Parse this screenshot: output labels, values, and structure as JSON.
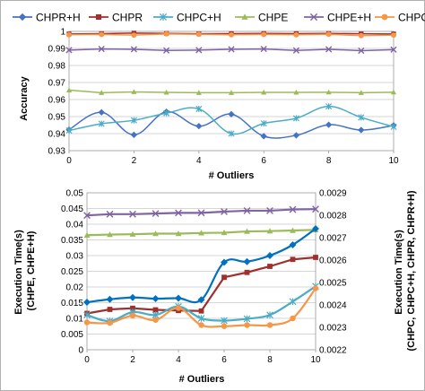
{
  "chart_data": [
    {
      "type": "line",
      "xlabel": "# Outliers",
      "ylabel": "Accuracy",
      "x": [
        0,
        1,
        2,
        3,
        4,
        5,
        6,
        7,
        8,
        9,
        10
      ],
      "xlim": [
        0,
        10
      ],
      "ylim": [
        0.93,
        1.0
      ],
      "xticks": [
        "0",
        "2",
        "4",
        "6",
        "8",
        "10"
      ],
      "yticks": [
        "0.93",
        "0.94",
        "0.95",
        "0.96",
        "0.97",
        "0.98",
        "0.99",
        "1"
      ],
      "grid": "horizontal",
      "legend_position": "top",
      "series": [
        {
          "name": "CHPR+H",
          "color": "#4472C4",
          "marker": "diamond",
          "smooth": true,
          "values": [
            0.9423,
            0.9525,
            0.9393,
            0.9528,
            0.9444,
            0.9514,
            0.9385,
            0.939,
            0.9452,
            0.9421,
            0.9448
          ]
        },
        {
          "name": "CHPR",
          "color": "#A0302D",
          "marker": "square",
          "values": [
            0.9985,
            0.9987,
            0.999,
            0.9988,
            0.9986,
            0.9987,
            0.9988,
            0.9987,
            0.9988,
            0.9986,
            0.9985
          ]
        },
        {
          "name": "CHPC+H",
          "color": "#4BACC6",
          "marker": "star",
          "smooth": true,
          "values": [
            0.9418,
            0.9458,
            0.9478,
            0.952,
            0.9545,
            0.94,
            0.946,
            0.949,
            0.956,
            0.9495,
            0.944
          ]
        },
        {
          "name": "CHPE",
          "color": "#9BBB59",
          "marker": "triangle",
          "values": [
            0.9655,
            0.964,
            0.9645,
            0.9642,
            0.964,
            0.964,
            0.9642,
            0.9642,
            0.9643,
            0.964,
            0.9643
          ]
        },
        {
          "name": "CHPE+H",
          "color": "#8064A2",
          "marker": "x",
          "values": [
            0.989,
            0.9897,
            0.9895,
            0.9888,
            0.989,
            0.9895,
            0.9897,
            0.9888,
            0.9895,
            0.9887,
            0.9893
          ]
        },
        {
          "name": "CHPC",
          "color": "#F79646",
          "marker": "circle",
          "values": [
            0.998,
            0.9982,
            0.9978,
            0.9985,
            0.9983,
            0.998,
            0.9982,
            0.998,
            0.9983,
            0.9975,
            0.9978
          ]
        }
      ]
    },
    {
      "type": "line",
      "xlabel": "# Outliers",
      "ylabel": "Execution Time(s) (CHPE, CHPE+H)",
      "ylabel_lines": [
        "Execution Time(s)",
        "(CHPE, CHPE+H)"
      ],
      "y2label": "Execution Time(s) (CHPC, CHPC+H, CHPR, CHPR+H)",
      "y2label_lines": [
        "Execution Time(s)",
        "(CHPC, CHPC+H, CHPR, CHPR+H)"
      ],
      "x": [
        0,
        1,
        2,
        3,
        4,
        5,
        6,
        7,
        8,
        9,
        10
      ],
      "xlim": [
        0,
        10
      ],
      "ylim": [
        0,
        0.05
      ],
      "y2lim": [
        0.0022,
        0.0029
      ],
      "xticks": [
        "0",
        "2",
        "4",
        "6",
        "8",
        "10"
      ],
      "yticks": [
        "0",
        "0.005",
        "0.01",
        "0.015",
        "0.02",
        "0.025",
        "0.03",
        "0.035",
        "0.04",
        "0.045",
        "0.05"
      ],
      "y2ticks": [
        "0.0022",
        "0.0023",
        "0.0024",
        "0.0025",
        "0.0026",
        "0.0027",
        "0.0028",
        "0.0029"
      ],
      "grid": "horizontal",
      "series": [
        {
          "name": "CHPE+H",
          "axis": "left",
          "color": "#8064A2",
          "marker": "x",
          "values": [
            0.0428,
            0.0432,
            0.0432,
            0.0434,
            0.0436,
            0.0436,
            0.044,
            0.0443,
            0.0443,
            0.0447,
            0.0448
          ]
        },
        {
          "name": "CHPE",
          "axis": "left",
          "color": "#9BBB59",
          "marker": "triangle",
          "values": [
            0.0365,
            0.0367,
            0.0368,
            0.037,
            0.037,
            0.0372,
            0.0373,
            0.0377,
            0.0378,
            0.038,
            0.0382
          ]
        },
        {
          "name": "CHPR+H",
          "axis": "right",
          "color": "#0070C0",
          "marker": "diamond",
          "smooth": true,
          "values": [
            0.002412,
            0.002425,
            0.002433,
            0.002428,
            0.00243,
            0.002423,
            0.00259,
            0.002593,
            0.00262,
            0.002668,
            0.00274
          ]
        },
        {
          "name": "CHPR",
          "axis": "right",
          "color": "#A0302D",
          "marker": "square",
          "values": [
            0.002362,
            0.00238,
            0.002385,
            0.002378,
            0.002375,
            0.002373,
            0.002523,
            0.002545,
            0.002572,
            0.002603,
            0.002612
          ]
        },
        {
          "name": "CHPC+H",
          "axis": "right",
          "color": "#4BACC6",
          "marker": "star",
          "smooth": true,
          "values": [
            0.002355,
            0.002328,
            0.002368,
            0.002355,
            0.002393,
            0.00234,
            0.00233,
            0.002338,
            0.002355,
            0.002415,
            0.002483
          ]
        },
        {
          "name": "CHPC",
          "axis": "right",
          "color": "#F79646",
          "marker": "circle",
          "smooth": true,
          "values": [
            0.002322,
            0.00232,
            0.002352,
            0.002333,
            0.002386,
            0.00231,
            0.002305,
            0.00231,
            0.00231,
            0.00234,
            0.002474
          ]
        }
      ]
    }
  ]
}
